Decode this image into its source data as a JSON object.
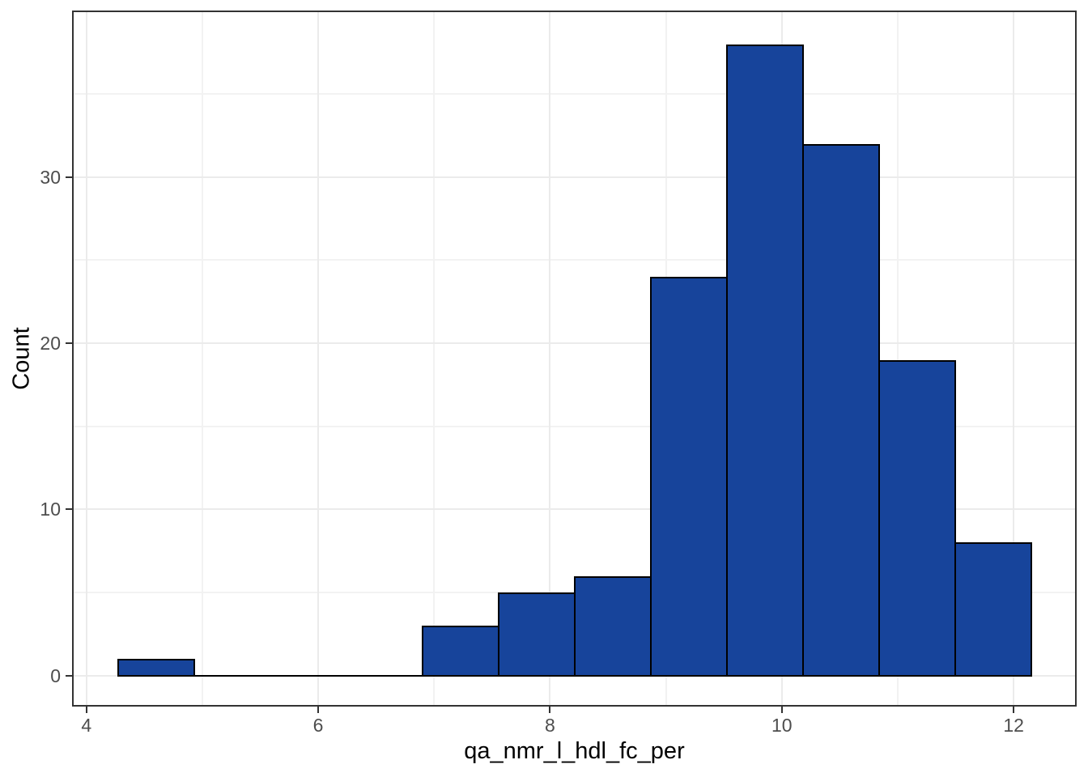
{
  "chart_data": {
    "type": "bar",
    "subtype": "histogram",
    "title": "",
    "xlabel": "qa_nmr_l_hdl_fc_per",
    "ylabel": "Count",
    "legend": false,
    "grid": true,
    "x_axis": {
      "min": 3.89,
      "max": 12.53,
      "major_ticks": [
        4,
        6,
        8,
        10,
        12
      ],
      "minor_ticks": [
        5,
        7,
        9,
        11
      ]
    },
    "y_axis": {
      "min": -1.77,
      "max": 39.93,
      "major_ticks": [
        0,
        10,
        20,
        30
      ],
      "minor_ticks": [
        5,
        15,
        25,
        35
      ]
    },
    "bins": [
      {
        "start": 4.272,
        "end": 4.929,
        "count": 1
      },
      {
        "start": 4.929,
        "end": 5.585,
        "count": 0
      },
      {
        "start": 5.585,
        "end": 6.242,
        "count": 0
      },
      {
        "start": 6.242,
        "end": 6.899,
        "count": 0
      },
      {
        "start": 6.899,
        "end": 7.555,
        "count": 3
      },
      {
        "start": 7.555,
        "end": 8.212,
        "count": 5
      },
      {
        "start": 8.212,
        "end": 8.868,
        "count": 6
      },
      {
        "start": 8.868,
        "end": 9.525,
        "count": 24
      },
      {
        "start": 9.525,
        "end": 10.181,
        "count": 38
      },
      {
        "start": 10.181,
        "end": 10.838,
        "count": 32
      },
      {
        "start": 10.838,
        "end": 11.495,
        "count": 19
      },
      {
        "start": 11.495,
        "end": 12.151,
        "count": 8
      }
    ],
    "colors": {
      "bar_fill": "#17449B",
      "bar_stroke": "#000000",
      "panel_border": "#333333",
      "tick_mark": "#333333",
      "tick_label": "#4d4d4d",
      "axis_title": "#000000",
      "grid_major": "#EBEBEB",
      "grid_minor": "#F2F2F2",
      "background": "#FFFFFF"
    }
  }
}
